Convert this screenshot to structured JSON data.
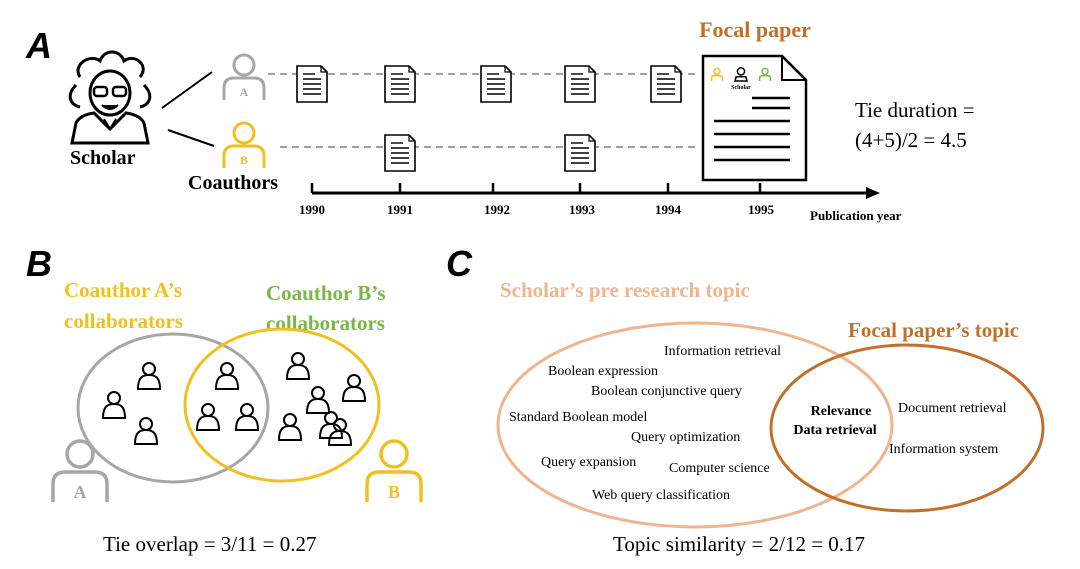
{
  "panel_a": {
    "label": "A",
    "scholar_label": "Scholar",
    "coauthors_label": "Coauthors",
    "coauthor_a": "A",
    "coauthor_b": "B",
    "focal_paper_title": "Focal paper",
    "focal_paper_header": "Scholar",
    "years": [
      "1990",
      "1991",
      "1992",
      "1993",
      "1994",
      "1995"
    ],
    "axis_label": "Publication year",
    "tie_duration_line1": "Tie duration =",
    "tie_duration_line2": "(4+5)/2 = 4.5"
  },
  "panel_b": {
    "label": "B",
    "coauthor_a_title_line1": "Coauthor A’s",
    "coauthor_a_title_line2": "collaborators",
    "coauthor_b_title_line1": "Coauthor B’s",
    "coauthor_b_title_line2": "collaborators",
    "coauthor_a": "A",
    "coauthor_b": "B",
    "formula": "Tie overlap =  3/11 = 0.27"
  },
  "panel_c": {
    "label": "C",
    "scholar_topic_title": "Scholar’s pre research topic",
    "focal_topic_title": "Focal  paper’s topic",
    "scholar_topics": [
      "Information retrieval",
      "Boolean expression",
      "Boolean conjunctive query",
      "Standard Boolean model",
      "Query optimization",
      "Query expansion",
      "Computer science",
      "Web query classification"
    ],
    "shared_topics": [
      "Relevance",
      "Data retrieval"
    ],
    "focal_topics": [
      "Document retrieval",
      "Information system"
    ],
    "formula": "Topic similarity = 2/12 = 0.17"
  },
  "colors": {
    "gray": "#a6a6a6",
    "yellow": "#f2c01e",
    "green": "#7ab648",
    "orange_text": "#c0702a",
    "light_orange": "#f0b48e",
    "dark_orange": "#c0702a"
  }
}
